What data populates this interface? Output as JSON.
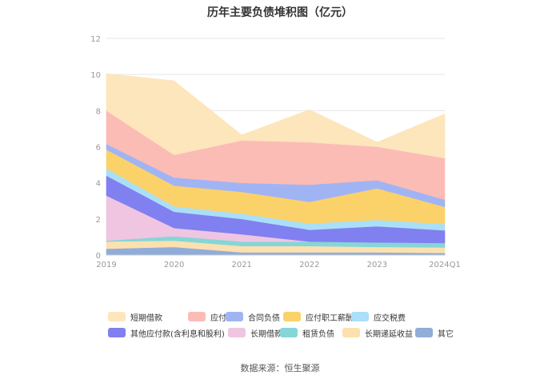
{
  "chart_data": {
    "type": "area",
    "title": "历年主要负债堆积图（亿元）",
    "categories": [
      "2019",
      "2020",
      "2021",
      "2022",
      "2023",
      "2024Q1"
    ],
    "ylim": [
      0,
      12
    ],
    "yticks": [
      "0",
      "2",
      "4",
      "6",
      "8",
      "10",
      "12"
    ],
    "stacked": true,
    "grid": true,
    "legend_position": "bottom",
    "series": [
      {
        "name": "其它",
        "color": "#8fadd8",
        "values": [
          0.35,
          0.45,
          0.15,
          0.15,
          0.15,
          0.12
        ]
      },
      {
        "name": "长期递延收益",
        "color": "#fde0b0",
        "values": [
          0.4,
          0.35,
          0.35,
          0.35,
          0.3,
          0.3
        ]
      },
      {
        "name": "租赁负债",
        "color": "#85d6d6",
        "values": [
          0.05,
          0.25,
          0.25,
          0.25,
          0.25,
          0.25
        ]
      },
      {
        "name": "长期借款",
        "color": "#efc5e2",
        "values": [
          2.5,
          0.45,
          0.4,
          0.0,
          0.0,
          0.0
        ]
      },
      {
        "name": "其他应付款(含利息和股利)",
        "color": "#8080f0",
        "values": [
          1.1,
          0.9,
          0.85,
          0.65,
          0.9,
          0.7
        ]
      },
      {
        "name": "应交税费",
        "color": "#aadff8",
        "values": [
          0.4,
          0.3,
          0.3,
          0.35,
          0.35,
          0.35
        ]
      },
      {
        "name": "应付职工薪酬",
        "color": "#fbd26a",
        "values": [
          1.05,
          1.15,
          1.2,
          1.2,
          1.75,
          0.95
        ]
      },
      {
        "name": "合同负债",
        "color": "#a0b4f4",
        "values": [
          0.3,
          0.45,
          0.5,
          0.95,
          0.45,
          0.4
        ]
      },
      {
        "name": "应付账款",
        "color": "#fbbcb6",
        "values": [
          1.85,
          1.25,
          2.35,
          2.35,
          1.85,
          2.3
        ]
      },
      {
        "name": "短期借款",
        "color": "#fde5bc",
        "values": [
          2.05,
          4.1,
          0.3,
          1.8,
          0.25,
          2.45
        ]
      }
    ]
  },
  "legend": [
    {
      "label": "短期借款",
      "color": "#fde5bc"
    },
    {
      "label": "应付账款",
      "color": "#fbbcb6"
    },
    {
      "label": "合同负债",
      "color": "#a0b4f4"
    },
    {
      "label": "应付职工薪酬",
      "color": "#fbd26a"
    },
    {
      "label": "应交税费",
      "color": "#aadff8"
    },
    {
      "label": "其他应付款(含利息和股利)",
      "color": "#8080f0"
    },
    {
      "label": "长期借款",
      "color": "#efc5e2"
    },
    {
      "label": "租赁负债",
      "color": "#85d6d6"
    },
    {
      "label": "长期递延收益",
      "color": "#fde0b0"
    },
    {
      "label": "其它",
      "color": "#8fadd8"
    }
  ],
  "source": "数据来源：恒生聚源"
}
